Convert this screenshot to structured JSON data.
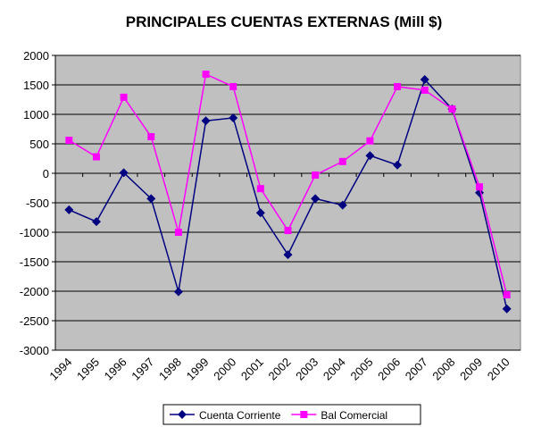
{
  "chart_data": {
    "type": "line",
    "title": "PRINCIPALES CUENTAS EXTERNAS (Mill $)",
    "categories": [
      "1994",
      "1995",
      "1996",
      "1997",
      "1998",
      "1999",
      "2000",
      "2001",
      "2002",
      "2003",
      "2004",
      "2005",
      "2006",
      "2007",
      "2008",
      "2009",
      "2010"
    ],
    "series": [
      {
        "name": "Cuenta Corriente",
        "color": "#000080",
        "marker": "diamond",
        "values": [
          -620,
          -820,
          10,
          -430,
          -2010,
          890,
          940,
          -670,
          -1380,
          -430,
          -540,
          300,
          140,
          1590,
          1090,
          -330,
          -2300
        ]
      },
      {
        "name": "Bal Comercial",
        "color": "#ff00ff",
        "marker": "square",
        "values": [
          560,
          280,
          1290,
          620,
          -1000,
          1680,
          1470,
          -260,
          -970,
          -30,
          200,
          550,
          1470,
          1410,
          1090,
          -230,
          -2060
        ]
      }
    ],
    "ylim": [
      -3000,
      2000
    ],
    "yticks": [
      -3000,
      -2500,
      -2000,
      -1500,
      -1000,
      -500,
      0,
      500,
      1000,
      1500,
      2000
    ],
    "grid": true,
    "legend": "bottom"
  }
}
